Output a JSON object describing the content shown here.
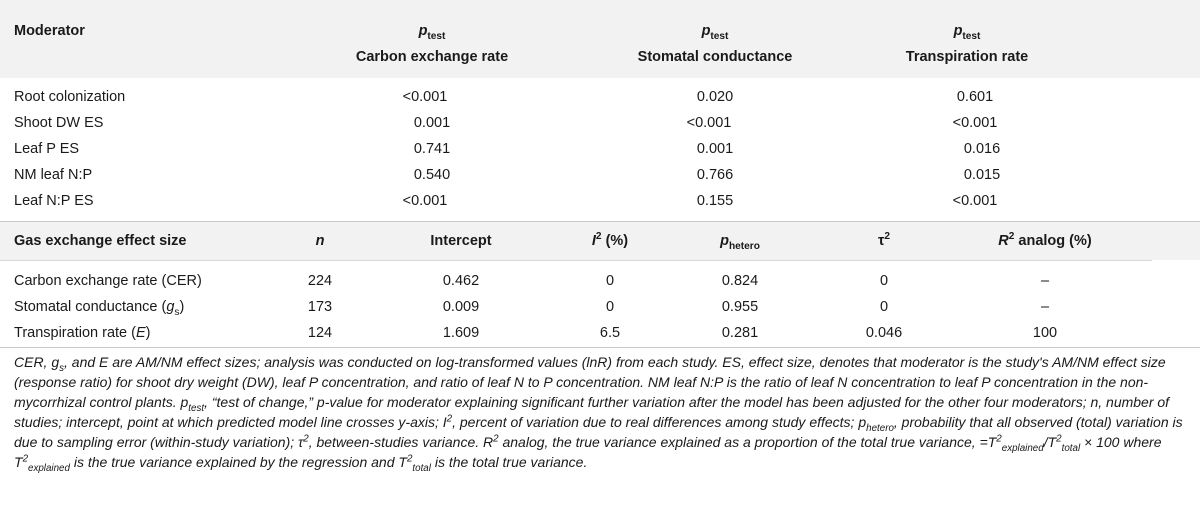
{
  "table1": {
    "header": {
      "moderator": "Moderator",
      "p_symbol": "p",
      "p_sub": "test",
      "cols": [
        "Carbon exchange rate",
        "Stomatal conductance",
        "Transpiration rate"
      ]
    },
    "rows": [
      {
        "label": "Root colonization",
        "values": [
          "<0.001",
          "0.020",
          "0.601"
        ]
      },
      {
        "label": "Shoot DW ES",
        "values": [
          "0.001",
          "<0.001",
          "<0.001"
        ]
      },
      {
        "label": "Leaf P ES",
        "values": [
          "0.741",
          "0.001",
          "0.016"
        ]
      },
      {
        "label": "NM leaf N:P",
        "values": [
          "0.540",
          "0.766",
          "0.015"
        ]
      },
      {
        "label": "Leaf N:P ES",
        "values": [
          "<0.001",
          "0.155",
          "<0.001"
        ]
      }
    ]
  },
  "table2": {
    "header": {
      "label": "Gas exchange effect size",
      "n": "n",
      "intercept": "Intercept",
      "i2_main": "I",
      "i2_sup": "2",
      "i2_unit": " (%)",
      "phetero_main": "p",
      "phetero_sub": "hetero",
      "tau_main": "τ",
      "tau_sup": "2",
      "r2_main": "R",
      "r2_sup": "2",
      "r2_rest": " analog (%)"
    },
    "rows": [
      {
        "label": "Carbon exchange rate (CER)",
        "label_main": "Carbon exchange rate (CER)",
        "n": "224",
        "intercept": "0.462",
        "i2": "0",
        "phetero": "0.824",
        "tau2": "0",
        "r2": "–"
      },
      {
        "label_main": "Stomatal conductance (",
        "label_var": "g",
        "label_sub": "s",
        "label_end": ")",
        "n": "173",
        "intercept": "0.009",
        "i2": "0",
        "phetero": "0.955",
        "tau2": "0",
        "r2": "–"
      },
      {
        "label_main": "Transpiration rate (",
        "label_var": "E",
        "label_end": ")",
        "n": "124",
        "intercept": "1.609",
        "i2": "6.5",
        "phetero": "0.281",
        "tau2": "0.046",
        "r2": "100"
      }
    ]
  },
  "footnote": {
    "part1": "CER, g",
    "part1_sub": "s",
    "part2": ", and E are AM/NM effect sizes; analysis was conducted on log-transformed values (lnR) from each study. ES, effect size, denotes that moderator is the study's AM/NM effect size (response ratio) for shoot dry weight (DW), leaf P concentration, and ratio of leaf N to P concentration. NM leaf N:P is the ratio of leaf N concentration to leaf P concentration in the non-mycorrhizal control plants. p",
    "part2_sub": "test",
    "part3": ", “test of change,” p-value for moderator explaining significant further variation after the model has been adjusted for the other four moderators; n, number of studies; intercept, point at which predicted model line crosses y-axis; I",
    "part3_sup": "2",
    "part4": ", percent of variation due to real differences among study effects; p",
    "part4_sub": "hetero",
    "part5": ", probability that all observed (total) variation is due to sampling error (within-study variation); τ",
    "part5_sup": "2",
    "part6": ", between-studies variance. R",
    "part6_sup": "2",
    "part7": " analog, the true variance explained as a proportion of the total true variance, =T",
    "part7_sup": "2",
    "part7_sub": "explained",
    "part8": "/T",
    "part8_sup": "2",
    "part8_sub": "total",
    "part9": " × 100 where T",
    "part9_sup": "2",
    "part9_sub": "explained",
    "part10": " is the true variance explained by the regression and T",
    "part10_sup": "2",
    "part10_sub": "total",
    "part11": " is the total true variance."
  }
}
